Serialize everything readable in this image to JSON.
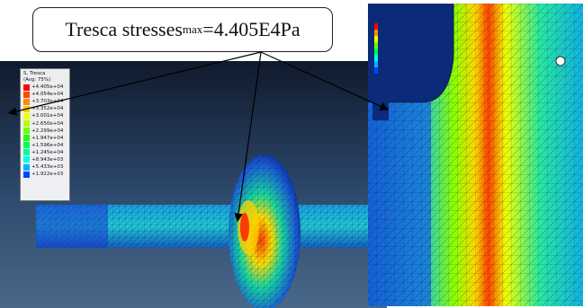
{
  "callout": {
    "text": "Tresca stresses",
    "subscript": "max",
    "value": "=4.405E4Pa"
  },
  "legend": {
    "title_line1": "S, Tresca",
    "title_line2": "(Avg: 75%)",
    "entries": [
      {
        "label": "+4.405e+04",
        "color": "#ff0000"
      },
      {
        "label": "+4.054e+04",
        "color": "#ff4a00"
      },
      {
        "label": "+3.703e+04",
        "color": "#ff8c00"
      },
      {
        "label": "+3.352e+04",
        "color": "#ffc800"
      },
      {
        "label": "+3.001e+04",
        "color": "#f2ff00"
      },
      {
        "label": "+2.650e+04",
        "color": "#b4ff00"
      },
      {
        "label": "+2.299e+04",
        "color": "#6cff00"
      },
      {
        "label": "+1.947e+04",
        "color": "#1eff00"
      },
      {
        "label": "+1.596e+04",
        "color": "#00ff46"
      },
      {
        "label": "+1.245e+04",
        "color": "#00ff9a"
      },
      {
        "label": "+8.943e+03",
        "color": "#00ffe6"
      },
      {
        "label": "+5.433e+03",
        "color": "#00b4ff"
      },
      {
        "label": "+1.922e+03",
        "color": "#0046ff"
      }
    ]
  }
}
